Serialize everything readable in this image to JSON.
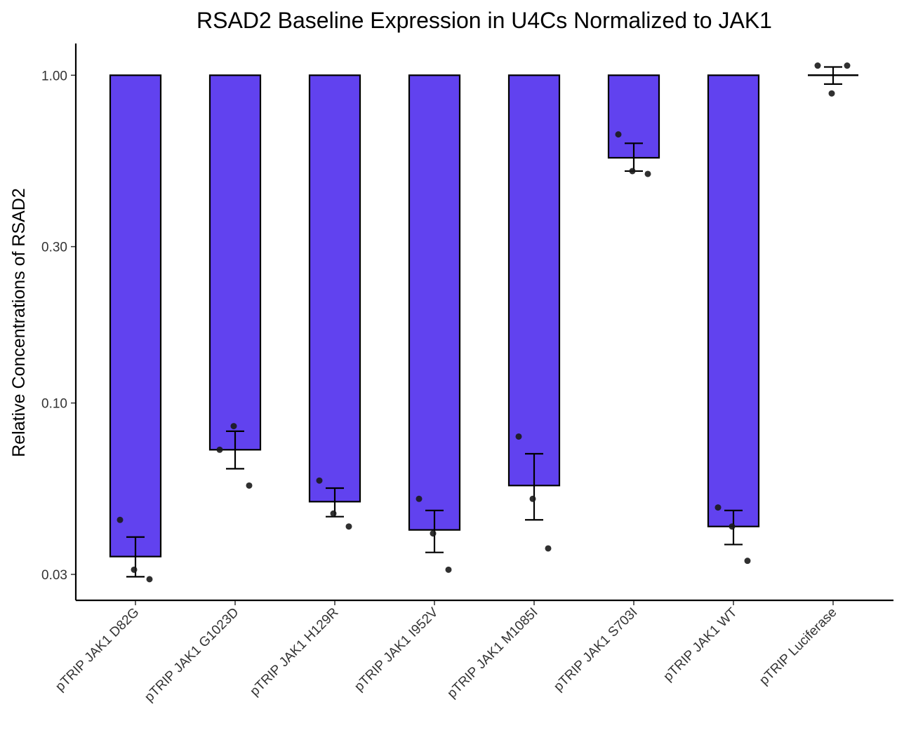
{
  "chart_data": {
    "type": "bar",
    "title": "RSAD2 Baseline Expression in U4Cs Normalized to JAK1",
    "xlabel": "",
    "ylabel": "Relative Concentrations of RSAD2",
    "yscale": "log",
    "ylim": [
      0.025,
      1.25
    ],
    "yticks": [
      1.0,
      0.3,
      0.1,
      0.03
    ],
    "ytick_labels": [
      "1.00",
      "0.30",
      "0.10",
      "0.03"
    ],
    "bar_baseline": 1.0,
    "bar_color": "#6142ef",
    "grid": false,
    "legend": "none",
    "categories": [
      "pTRIP JAK1 D82G",
      "pTRIP JAK1 G1023D",
      "pTRIP JAK1 H129R",
      "pTRIP JAK1 I952V",
      "pTRIP JAK1 M1085I",
      "pTRIP JAK1 S703I",
      "pTRIP JAK1 WT",
      "pTRIP Luciferase"
    ],
    "values": [
      0.034,
      0.072,
      0.05,
      0.041,
      0.056,
      0.56,
      0.042,
      1.0
    ],
    "error_low": [
      0.0295,
      0.063,
      0.045,
      0.035,
      0.044,
      0.51,
      0.037,
      0.94
    ],
    "error_high": [
      0.039,
      0.082,
      0.055,
      0.047,
      0.07,
      0.62,
      0.047,
      1.06
    ],
    "points": [
      [
        0.044,
        0.031,
        0.029
      ],
      [
        0.072,
        0.085,
        0.056
      ],
      [
        0.058,
        0.046,
        0.042
      ],
      [
        0.051,
        0.04,
        0.031
      ],
      [
        0.079,
        0.051,
        0.036
      ],
      [
        0.66,
        0.51,
        0.5
      ],
      [
        0.048,
        0.042,
        0.033
      ],
      [
        1.07,
        0.88,
        1.07
      ]
    ]
  }
}
